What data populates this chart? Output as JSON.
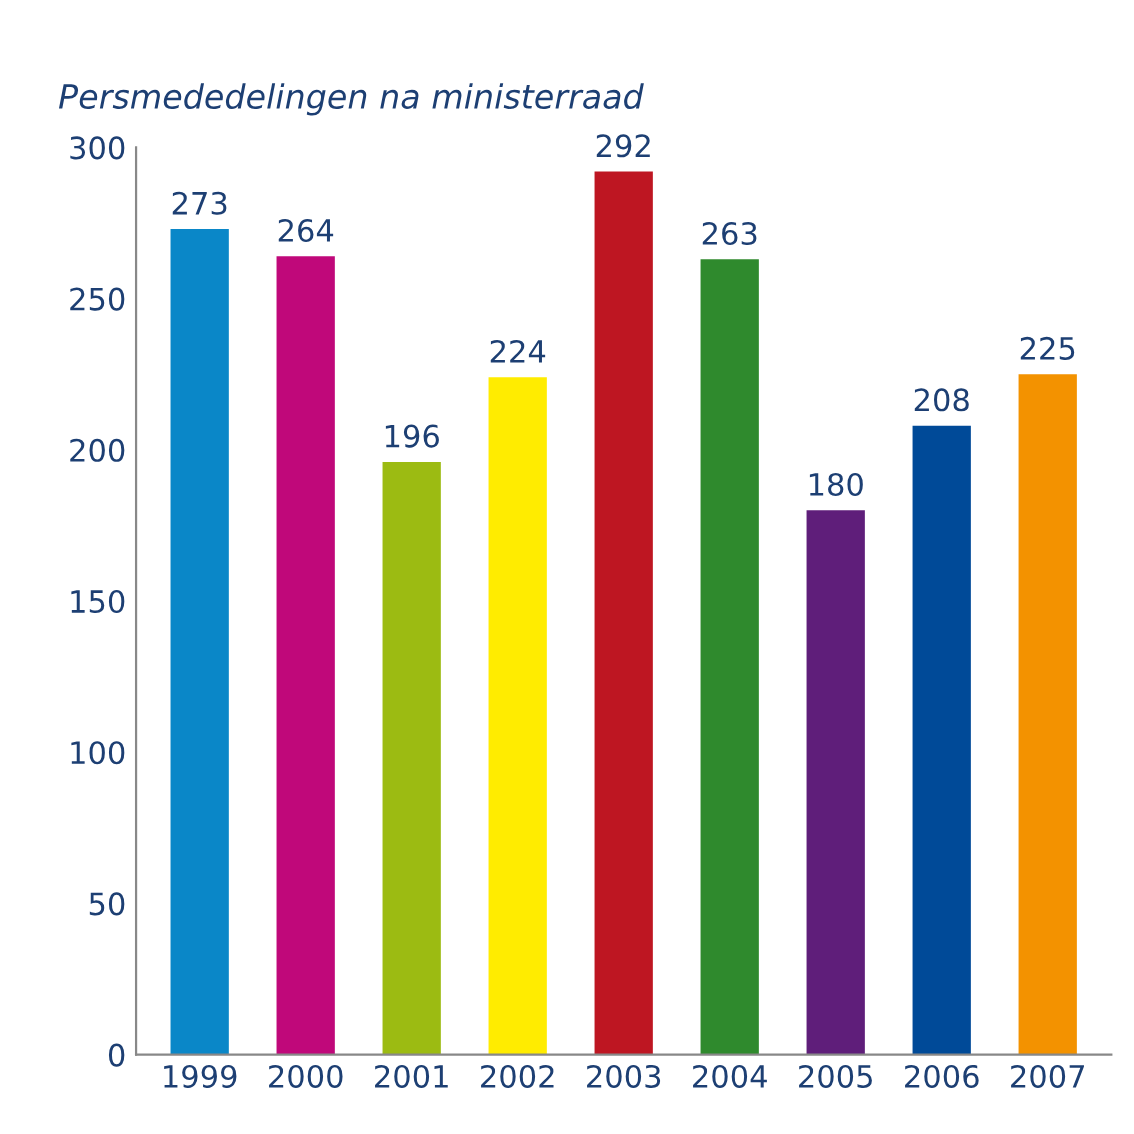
{
  "chart_data": {
    "type": "bar",
    "title": "Persmededelingen na ministerraad",
    "categories": [
      "1999",
      "2000",
      "2001",
      "2002",
      "2003",
      "2004",
      "2005",
      "2006",
      "2007"
    ],
    "values": [
      273,
      264,
      196,
      224,
      292,
      263,
      180,
      208,
      225
    ],
    "colors": [
      "#0a87c8",
      "#c0087a",
      "#9cbb12",
      "#ffec00",
      "#be1622",
      "#2f8a2d",
      "#5f1e7a",
      "#004a98",
      "#f39200"
    ],
    "ylim": [
      0,
      300
    ],
    "yticks": [
      0,
      50,
      100,
      150,
      200,
      250,
      300
    ],
    "data_labels": true,
    "grid": false,
    "legend": false
  }
}
